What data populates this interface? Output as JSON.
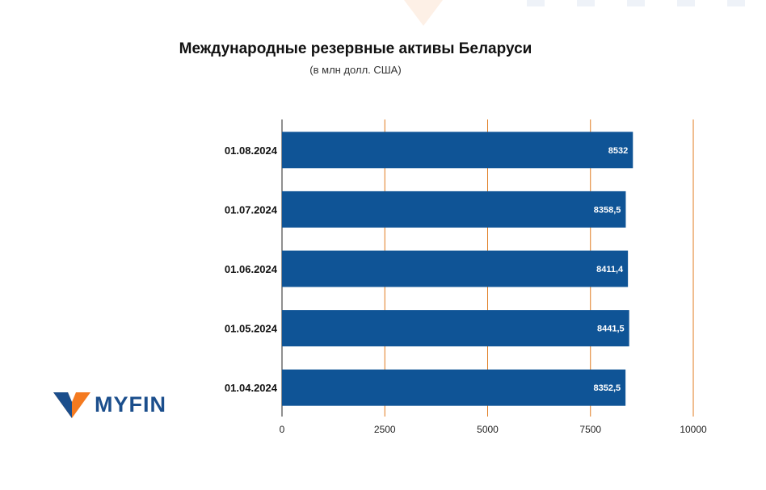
{
  "chart_data": {
    "type": "bar",
    "orientation": "horizontal",
    "title": "Международные резервные активы Беларуси",
    "subtitle": "(в млн долл. США)",
    "categories": [
      "01.08.2024",
      "01.07.2024",
      "01.06.2024",
      "01.05.2024",
      "01.04.2024"
    ],
    "values": [
      8532,
      8358.5,
      8411.4,
      8441.5,
      8352.5
    ],
    "value_labels": [
      "8532",
      "8358,5",
      "8411,4",
      "8441,5",
      "8352,5"
    ],
    "x_ticks": [
      0,
      2500,
      5000,
      7500,
      10000
    ],
    "xlim": [
      0,
      10000
    ],
    "grid": true,
    "colors": {
      "bar": "#0f5496",
      "grid": "#e07b20",
      "bar_label": "#ffffff"
    }
  },
  "brand": {
    "name": "MYFIN",
    "colors": {
      "orange": "#f47a20",
      "navy": "#1b4e8c"
    }
  }
}
